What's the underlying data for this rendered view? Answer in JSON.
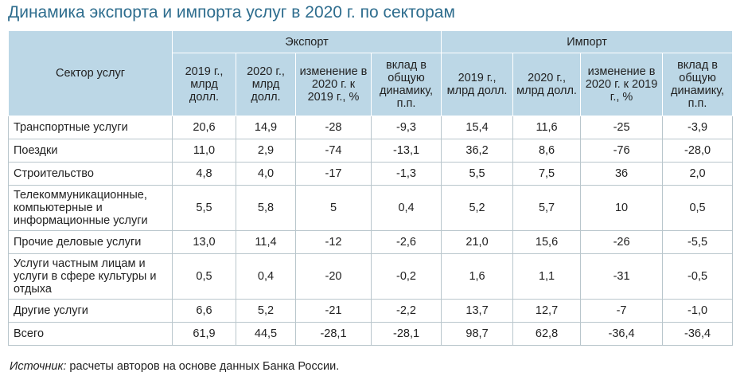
{
  "title": "Динамика экспорта и импорта услуг в 2020 г. по секторам",
  "table": {
    "sector_header": "Сектор услуг",
    "groups": [
      "Экспорт",
      "Импорт"
    ],
    "subheaders": [
      "2019 г., млрд долл.",
      "2020 г., млрд долл.",
      "изменение в 2020 г. к 2019 г., %",
      "вклад в общую динамику, п.п."
    ],
    "rows": [
      {
        "sector": "Транспортные услуги",
        "values": [
          "20,6",
          "14,9",
          "-28",
          "-9,3",
          "15,4",
          "11,6",
          "-25",
          "-3,9"
        ]
      },
      {
        "sector": "Поездки",
        "values": [
          "11,0",
          "2,9",
          "-74",
          "-13,1",
          "36,2",
          "8,6",
          "-76",
          "-28,0"
        ]
      },
      {
        "sector": "Строительство",
        "values": [
          "4,8",
          "4,0",
          "-17",
          "-1,3",
          "5,5",
          "7,5",
          "36",
          "2,0"
        ]
      },
      {
        "sector": "Телекоммуникационные, компьютерные и информационные услуги",
        "values": [
          "5,5",
          "5,8",
          "5",
          "0,4",
          "5,2",
          "5,7",
          "10",
          "0,5"
        ]
      },
      {
        "sector": "Прочие деловые услуги",
        "values": [
          "13,0",
          "11,4",
          "-12",
          "-2,6",
          "21,0",
          "15,6",
          "-26",
          "-5,5"
        ]
      },
      {
        "sector": "Услуги частным лицам и услуги в сфере культуры и отдыха",
        "values": [
          "0,5",
          "0,4",
          "-20",
          "-0,2",
          "1,6",
          "1,1",
          "-31",
          "-0,5"
        ]
      },
      {
        "sector": "Другие услуги",
        "values": [
          "6,6",
          "5,2",
          "-21",
          "-2,2",
          "13,7",
          "12,7",
          "-7",
          "-1,0"
        ]
      },
      {
        "sector": "Всего",
        "values": [
          "61,9",
          "44,5",
          "-28,1",
          "-28,1",
          "98,7",
          "62,8",
          "-36,4",
          "-36,4"
        ]
      }
    ]
  },
  "source": {
    "label": "Источник:",
    "text": " расчеты авторов на основе данных Банка России."
  }
}
